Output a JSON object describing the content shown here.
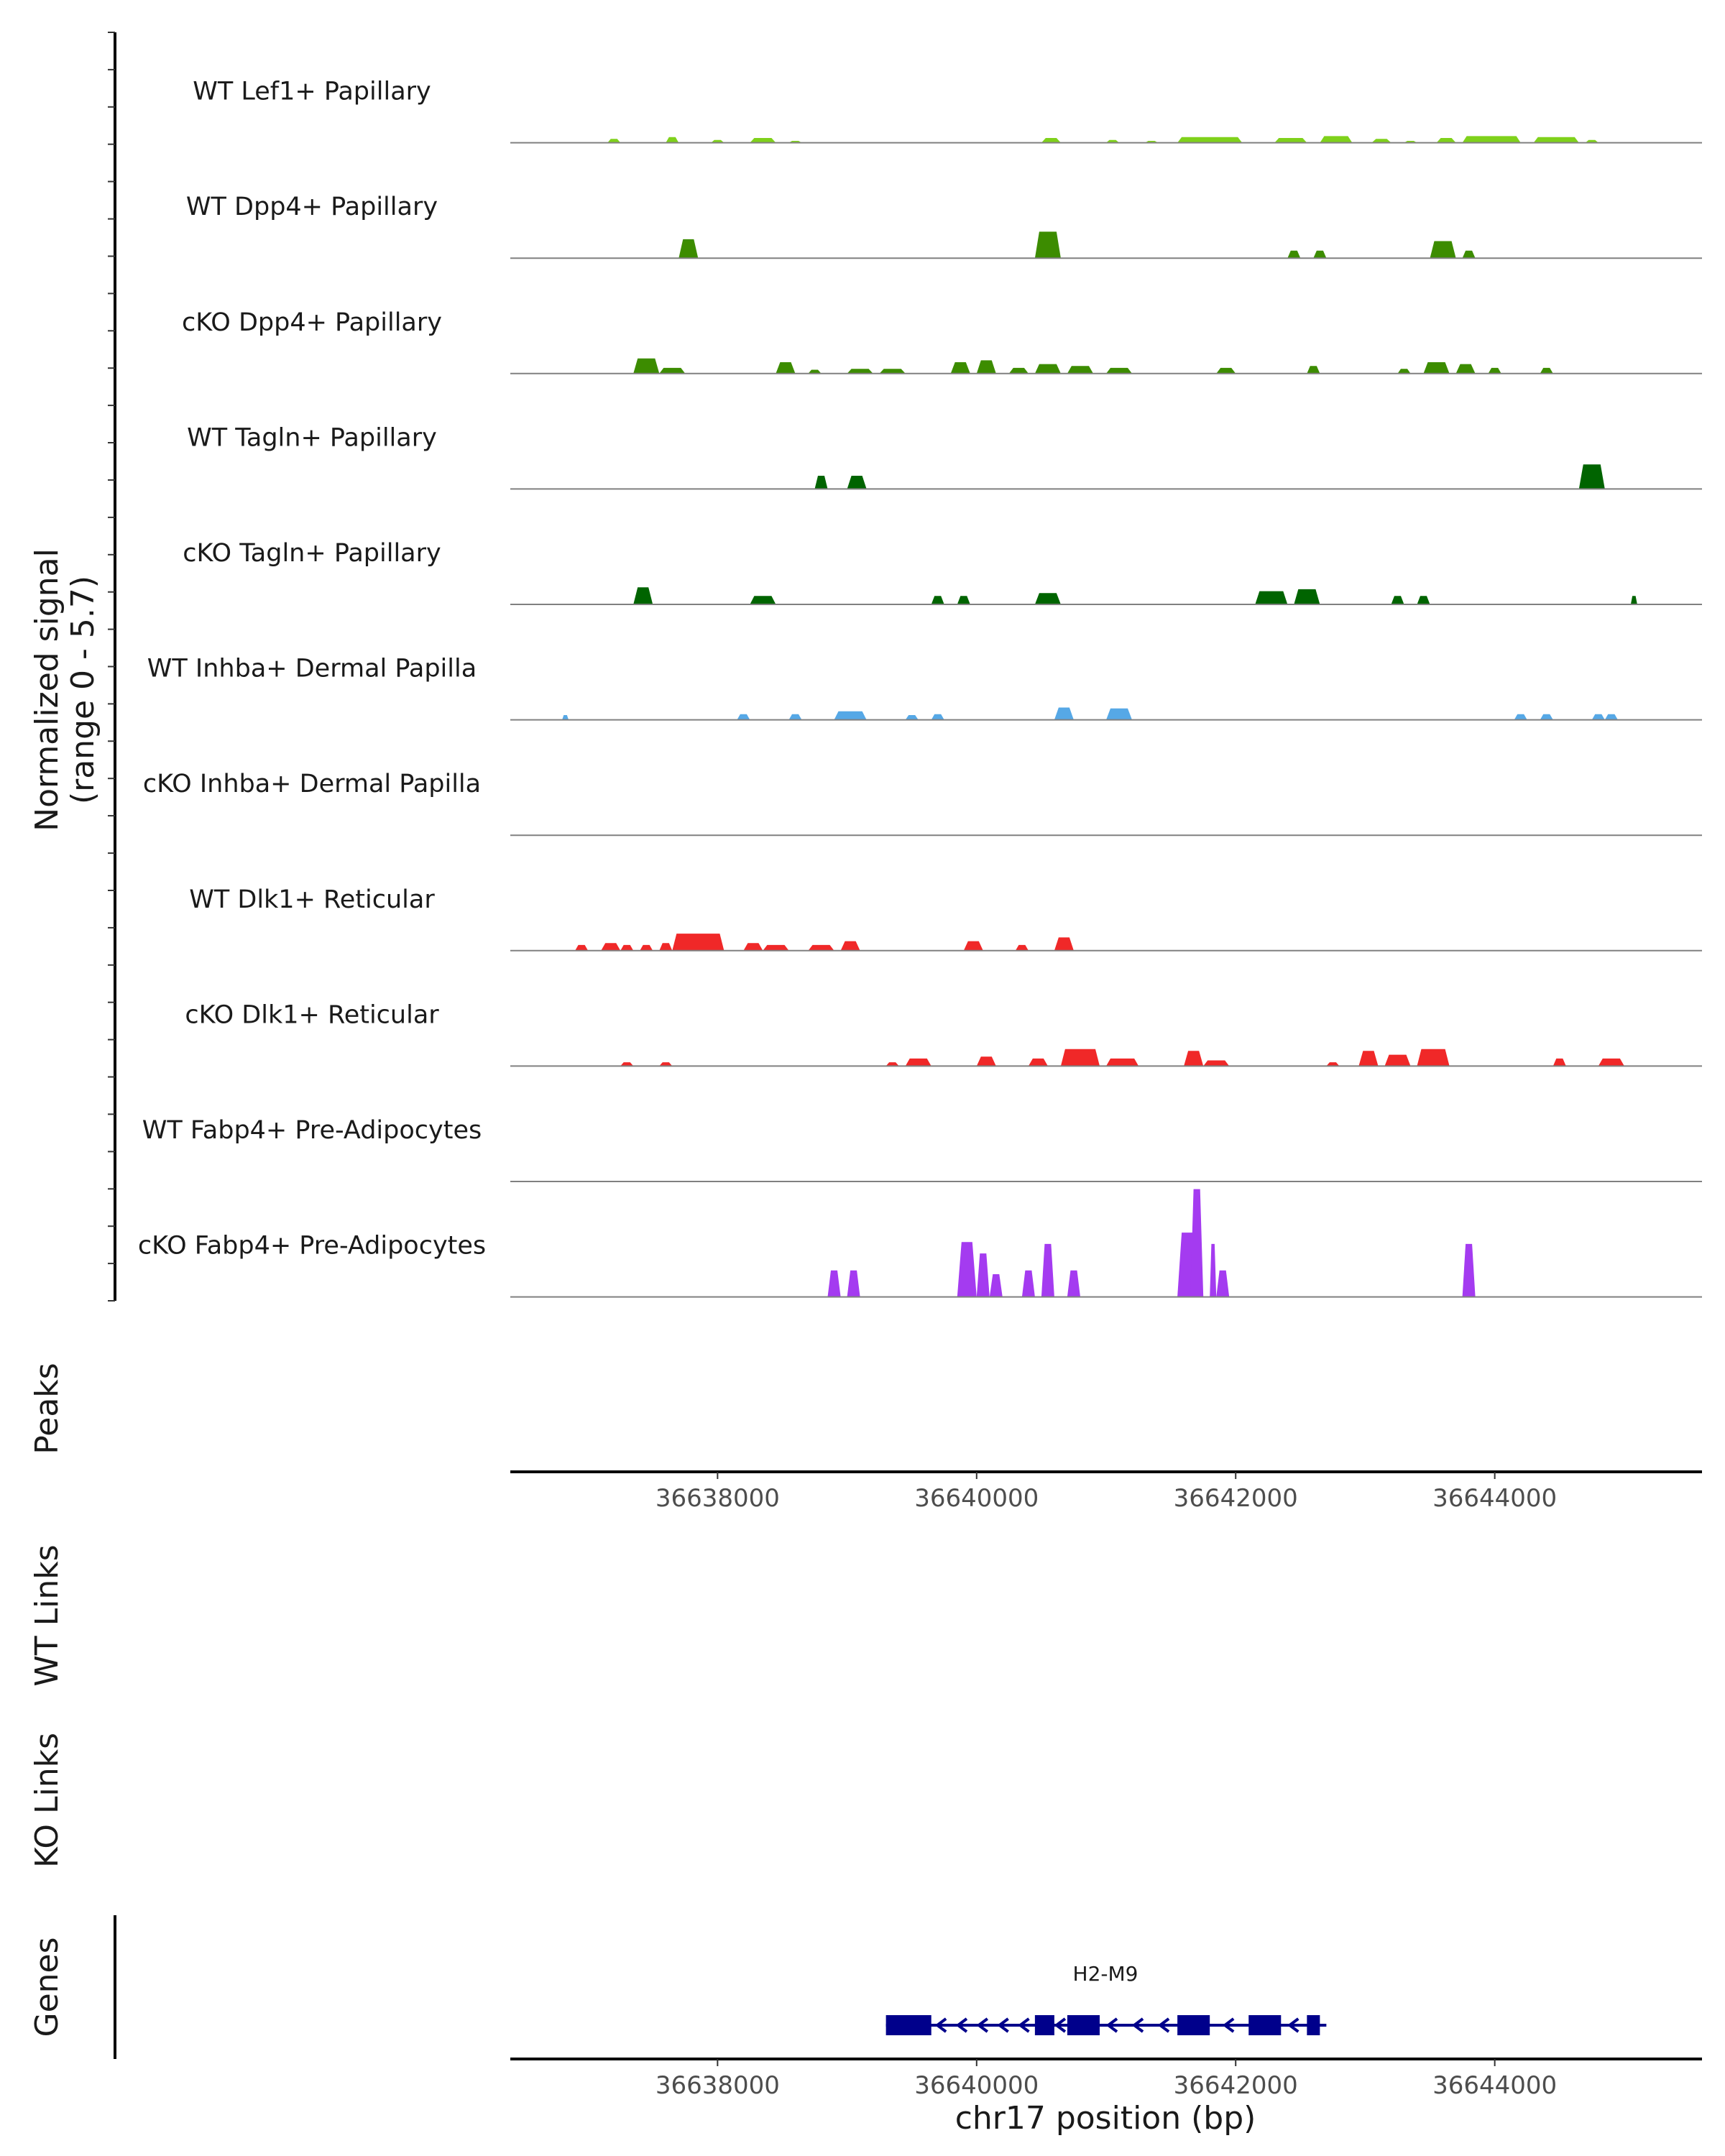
{
  "chart_data": {
    "type": "area",
    "chromosome": "chr17",
    "xlim": [
      36636400,
      36645600
    ],
    "coverage": {
      "ylabel_line1": "Normalized signal",
      "ylabel_line2": "(range 0 - 5.7)",
      "ylim": [
        0,
        5.7
      ],
      "tracks": [
        {
          "name": "WT Lef1+ Papillary",
          "color": "#7fd11b",
          "segments": [
            [
              36637150,
              36637250,
              0.2
            ],
            [
              36637600,
              36637700,
              0.3
            ],
            [
              36637950,
              36638050,
              0.15
            ],
            [
              36638250,
              36638450,
              0.25
            ],
            [
              36638550,
              36638650,
              0.1
            ],
            [
              36640500,
              36640650,
              0.25
            ],
            [
              36641000,
              36641100,
              0.15
            ],
            [
              36641300,
              36641400,
              0.1
            ],
            [
              36641550,
              36642050,
              0.3
            ],
            [
              36642300,
              36642550,
              0.25
            ],
            [
              36642650,
              36642900,
              0.35
            ],
            [
              36643050,
              36643200,
              0.2
            ],
            [
              36643300,
              36643400,
              0.1
            ],
            [
              36643550,
              36643700,
              0.25
            ],
            [
              36643750,
              36644200,
              0.35
            ],
            [
              36644300,
              36644650,
              0.3
            ],
            [
              36644700,
              36644800,
              0.15
            ]
          ]
        },
        {
          "name": "WT Dpp4+ Papillary",
          "color": "#3c8c00",
          "segments": [
            [
              36637700,
              36637850,
              1.0
            ],
            [
              36640450,
              36640650,
              1.4
            ],
            [
              36642400,
              36642500,
              0.4
            ],
            [
              36642600,
              36642700,
              0.4
            ],
            [
              36643500,
              36643700,
              0.9
            ],
            [
              36643750,
              36643850,
              0.4
            ]
          ]
        },
        {
          "name": "cKO Dpp4+ Papillary",
          "color": "#3c8c00",
          "segments": [
            [
              36637350,
              36637550,
              0.8
            ],
            [
              36637550,
              36637750,
              0.3
            ],
            [
              36638450,
              36638600,
              0.6
            ],
            [
              36638700,
              36638800,
              0.2
            ],
            [
              36639000,
              36639200,
              0.25
            ],
            [
              36639250,
              36639450,
              0.25
            ],
            [
              36639800,
              36639950,
              0.6
            ],
            [
              36640000,
              36640150,
              0.7
            ],
            [
              36640250,
              36640400,
              0.3
            ],
            [
              36640450,
              36640650,
              0.5
            ],
            [
              36640700,
              36640900,
              0.4
            ],
            [
              36641000,
              36641200,
              0.3
            ],
            [
              36641850,
              36642000,
              0.3
            ],
            [
              36642550,
              36642650,
              0.4
            ],
            [
              36643250,
              36643350,
              0.25
            ],
            [
              36643450,
              36643650,
              0.6
            ],
            [
              36643700,
              36643850,
              0.5
            ],
            [
              36643950,
              36644050,
              0.3
            ],
            [
              36644350,
              36644450,
              0.3
            ]
          ]
        },
        {
          "name": "WT Tagln+ Papillary",
          "color": "#006400",
          "segments": [
            [
              36638750,
              36638850,
              0.7
            ],
            [
              36639000,
              36639150,
              0.7
            ],
            [
              36644650,
              36644850,
              1.3
            ]
          ]
        },
        {
          "name": "cKO Tagln+ Papillary",
          "color": "#006400",
          "segments": [
            [
              36637350,
              36637500,
              0.9
            ],
            [
              36638250,
              36638450,
              0.45
            ],
            [
              36639650,
              36639750,
              0.45
            ],
            [
              36639850,
              36639950,
              0.45
            ],
            [
              36640450,
              36640650,
              0.6
            ],
            [
              36642150,
              36642400,
              0.7
            ],
            [
              36642450,
              36642650,
              0.8
            ],
            [
              36643200,
              36643300,
              0.45
            ],
            [
              36643400,
              36643500,
              0.45
            ],
            [
              36645050,
              36645100,
              0.45
            ]
          ]
        },
        {
          "name": "WT Inhba+ Dermal Papilla",
          "color": "#56a8e6",
          "segments": [
            [
              36636800,
              36636850,
              0.25
            ],
            [
              36638150,
              36638250,
              0.3
            ],
            [
              36638550,
              36638650,
              0.3
            ],
            [
              36638900,
              36639150,
              0.45
            ],
            [
              36639450,
              36639550,
              0.25
            ],
            [
              36639650,
              36639750,
              0.3
            ],
            [
              36640600,
              36640750,
              0.65
            ],
            [
              36641000,
              36641200,
              0.6
            ],
            [
              36644150,
              36644250,
              0.3
            ],
            [
              36644350,
              36644450,
              0.3
            ],
            [
              36644750,
              36644850,
              0.3
            ],
            [
              36644850,
              36644950,
              0.3
            ]
          ]
        },
        {
          "name": "cKO Inhba+ Dermal Papilla",
          "color": "#56a8e6",
          "segments": []
        },
        {
          "name": "WT Dlk1+ Reticular",
          "color": "#f02828",
          "segments": [
            [
              36636900,
              36637000,
              0.3
            ],
            [
              36637100,
              36637250,
              0.4
            ],
            [
              36637250,
              36637350,
              0.3
            ],
            [
              36637400,
              36637500,
              0.3
            ],
            [
              36637550,
              36637650,
              0.4
            ],
            [
              36637650,
              36638050,
              0.9
            ],
            [
              36638200,
              36638350,
              0.4
            ],
            [
              36638350,
              36638550,
              0.3
            ],
            [
              36638700,
              36638900,
              0.3
            ],
            [
              36638950,
              36639100,
              0.5
            ],
            [
              36639900,
              36640050,
              0.5
            ],
            [
              36640300,
              36640400,
              0.3
            ],
            [
              36640600,
              36640750,
              0.7
            ]
          ]
        },
        {
          "name": "cKO Dlk1+ Reticular",
          "color": "#f02828",
          "segments": [
            [
              36637250,
              36637350,
              0.2
            ],
            [
              36637550,
              36637650,
              0.2
            ],
            [
              36639300,
              36639400,
              0.2
            ],
            [
              36639450,
              36639650,
              0.4
            ],
            [
              36640000,
              36640150,
              0.5
            ],
            [
              36640400,
              36640550,
              0.4
            ],
            [
              36640650,
              36640950,
              0.9
            ],
            [
              36641000,
              36641250,
              0.4
            ],
            [
              36641600,
              36641750,
              0.8
            ],
            [
              36641750,
              36641950,
              0.3
            ],
            [
              36642700,
              36642800,
              0.2
            ],
            [
              36642950,
              36643100,
              0.8
            ],
            [
              36643150,
              36643350,
              0.6
            ],
            [
              36643400,
              36643650,
              0.9
            ],
            [
              36644450,
              36644550,
              0.4
            ],
            [
              36644800,
              36645000,
              0.4
            ]
          ]
        },
        {
          "name": "WT Fabp4+ Pre-Adipocytes",
          "color": "#a43bf0",
          "segments": []
        },
        {
          "name": "cKO Fabp4+ Pre-Adipocytes",
          "color": "#a43bf0",
          "segments": [
            [
              36638850,
              36638950,
              1.4
            ],
            [
              36639000,
              36639100,
              1.4
            ],
            [
              36639850,
              36640000,
              2.9
            ],
            [
              36640000,
              36640100,
              2.3
            ],
            [
              36640100,
              36640200,
              1.2
            ],
            [
              36640350,
              36640450,
              1.4
            ],
            [
              36640500,
              36640600,
              2.8
            ],
            [
              36640700,
              36640800,
              1.4
            ],
            [
              36641550,
              36641700,
              3.4
            ],
            [
              36641650,
              36641750,
              5.7
            ],
            [
              36641800,
              36641850,
              2.8
            ],
            [
              36641850,
              36641950,
              1.4
            ],
            [
              36643750,
              36643850,
              2.8
            ]
          ]
        }
      ]
    },
    "peaks": {
      "title": "Peaks",
      "items": []
    },
    "x_ticks": [
      36638000,
      36640000,
      36642000,
      36644000
    ],
    "x_tick_labels": [
      "36638000",
      "36640000",
      "36642000",
      "36644000"
    ],
    "links": [
      {
        "title": "WT Links",
        "items": []
      },
      {
        "title": "KO Links",
        "items": []
      }
    ],
    "genes": {
      "title": "Genes",
      "color": "#00008b",
      "gene": "H2-M9",
      "start": 36639300,
      "end": 36642700,
      "strand": "-",
      "exons": [
        [
          36639300,
          36639650
        ],
        [
          36640450,
          36640600
        ],
        [
          36640700,
          36640950
        ],
        [
          36641550,
          36641800
        ],
        [
          36642100,
          36642350
        ],
        [
          36642550,
          36642650
        ]
      ]
    },
    "xlabel": "chr17 position (bp)"
  }
}
